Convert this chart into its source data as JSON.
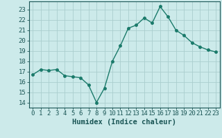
{
  "x": [
    0,
    1,
    2,
    3,
    4,
    5,
    6,
    7,
    8,
    9,
    10,
    11,
    12,
    13,
    14,
    15,
    16,
    17,
    18,
    19,
    20,
    21,
    22,
    23
  ],
  "y": [
    16.7,
    17.2,
    17.1,
    17.2,
    16.6,
    16.5,
    16.4,
    15.7,
    14.0,
    15.4,
    18.0,
    19.5,
    21.2,
    21.5,
    22.2,
    21.7,
    23.3,
    22.3,
    21.0,
    20.5,
    19.8,
    19.4,
    19.1,
    18.9
  ],
  "line_color": "#1a7a6a",
  "marker": "o",
  "markersize": 2.5,
  "linewidth": 1.0,
  "bg_color": "#cceaea",
  "grid_color": "#aacece",
  "xlabel": "Humidex (Indice chaleur)",
  "xlim": [
    -0.5,
    23.5
  ],
  "ylim": [
    13.5,
    23.8
  ],
  "yticks": [
    14,
    15,
    16,
    17,
    18,
    19,
    20,
    21,
    22,
    23
  ],
  "xticks": [
    0,
    1,
    2,
    3,
    4,
    5,
    6,
    7,
    8,
    9,
    10,
    11,
    12,
    13,
    14,
    15,
    16,
    17,
    18,
    19,
    20,
    21,
    22,
    23
  ],
  "tick_color": "#1a5555",
  "xlabel_fontsize": 7.5,
  "tick_fontsize": 6.5
}
